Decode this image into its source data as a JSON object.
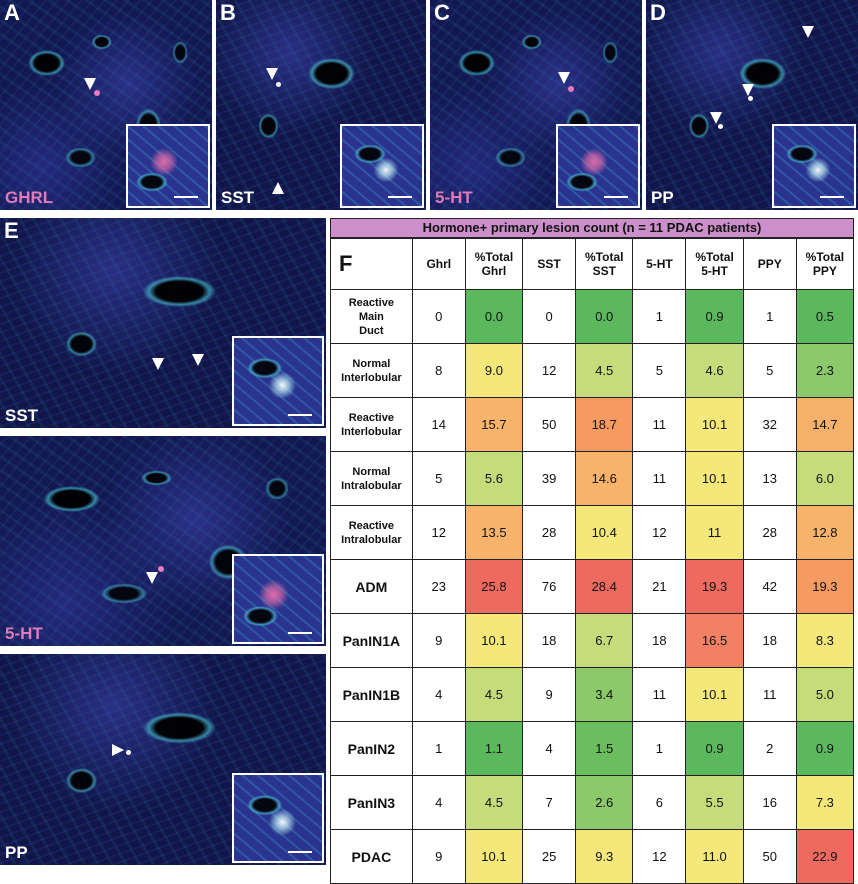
{
  "panels": {
    "A": {
      "letter": "A",
      "stain": "GHRL"
    },
    "B": {
      "letter": "B",
      "stain": "SST"
    },
    "C": {
      "letter": "C",
      "stain": "5-HT"
    },
    "D": {
      "letter": "D",
      "stain": "PP"
    },
    "E": {
      "letter": "E",
      "stain_top": "SST",
      "stain_mid": "5-HT",
      "stain_bot": "PP"
    },
    "F": {
      "letter": "F"
    }
  },
  "table": {
    "title": "Hormone+ primary lesion count (n = 11 PDAC patients)",
    "headers": [
      "Ghrl",
      "%Total Ghrl",
      "SST",
      "%Total SST",
      "5-HT",
      "%Total 5-HT",
      "PPY",
      "%Total PPY"
    ],
    "header_lines": [
      [
        "Ghrl"
      ],
      [
        "%Total",
        "Ghrl"
      ],
      [
        "SST"
      ],
      [
        "%Total",
        "SST"
      ],
      [
        "5-HT"
      ],
      [
        "%Total",
        "5-HT"
      ],
      [
        "PPY"
      ],
      [
        "%Total",
        "PPY"
      ]
    ],
    "rows": [
      {
        "label": [
          "Reactive",
          "Main",
          "Duct"
        ],
        "values": [
          "0",
          "0.0",
          "0",
          "0.0",
          "1",
          "0.9",
          "1",
          "0.5"
        ]
      },
      {
        "label": [
          "Normal",
          "Interlobular"
        ],
        "values": [
          "8",
          "9.0",
          "12",
          "4.5",
          "5",
          "4.6",
          "5",
          "2.3"
        ]
      },
      {
        "label": [
          "Reactive",
          "Interlobular"
        ],
        "values": [
          "14",
          "15.7",
          "50",
          "18.7",
          "11",
          "10.1",
          "32",
          "14.7"
        ]
      },
      {
        "label": [
          "Normal",
          "Intralobular"
        ],
        "values": [
          "5",
          "5.6",
          "39",
          "14.6",
          "11",
          "10.1",
          "13",
          "6.0"
        ]
      },
      {
        "label": [
          "Reactive",
          "Intralobular"
        ],
        "values": [
          "12",
          "13.5",
          "28",
          "10.4",
          "12",
          "11",
          "28",
          "12.8"
        ]
      },
      {
        "label": [
          "ADM"
        ],
        "values": [
          "23",
          "25.8",
          "76",
          "28.4",
          "21",
          "19.3",
          "42",
          "19.3"
        ]
      },
      {
        "label": [
          "PanIN1A"
        ],
        "values": [
          "9",
          "10.1",
          "18",
          "6.7",
          "18",
          "16.5",
          "18",
          "8.3"
        ]
      },
      {
        "label": [
          "PanIN1B"
        ],
        "values": [
          "4",
          "4.5",
          "9",
          "3.4",
          "11",
          "10.1",
          "11",
          "5.0"
        ]
      },
      {
        "label": [
          "PanIN2"
        ],
        "values": [
          "1",
          "1.1",
          "4",
          "1.5",
          "1",
          "0.9",
          "2",
          "0.9"
        ]
      },
      {
        "label": [
          "PanIN3"
        ],
        "values": [
          "4",
          "4.5",
          "7",
          "2.6",
          "6",
          "5.5",
          "16",
          "7.3"
        ]
      },
      {
        "label": [
          "PDAC"
        ],
        "values": [
          "9",
          "10.1",
          "25",
          "9.3",
          "12",
          "11.0",
          "50",
          "22.9"
        ]
      }
    ],
    "pct_colors": [
      [
        "#5cb85c",
        "#5cb85c",
        "#5cb85c",
        "#5cb85c"
      ],
      [
        "#f5e87a",
        "#c5dc7a",
        "#c5dc7a",
        "#8cc96a"
      ],
      [
        "#f7b36a",
        "#f59a60",
        "#f5e87a",
        "#f7b06a"
      ],
      [
        "#c5dc7a",
        "#f7b36a",
        "#f5e87a",
        "#c5dc7a"
      ],
      [
        "#f7b36a",
        "#f5e87a",
        "#f5e87a",
        "#f7b36a"
      ],
      [
        "#ef6a5e",
        "#ef6a5e",
        "#ef6a5e",
        "#f59a60"
      ],
      [
        "#f5e87a",
        "#c5dc7a",
        "#f28062",
        "#f5e87a"
      ],
      [
        "#c5dc7a",
        "#8cc96a",
        "#f5e87a",
        "#c5dc7a"
      ],
      [
        "#5cb85c",
        "#6bbd5e",
        "#5cb85c",
        "#5cb85c"
      ],
      [
        "#c5dc7a",
        "#8cc96a",
        "#c5dc7a",
        "#f5e87a"
      ],
      [
        "#f5e87a",
        "#f5e87a",
        "#f5e87a",
        "#ef6a5e"
      ]
    ]
  }
}
